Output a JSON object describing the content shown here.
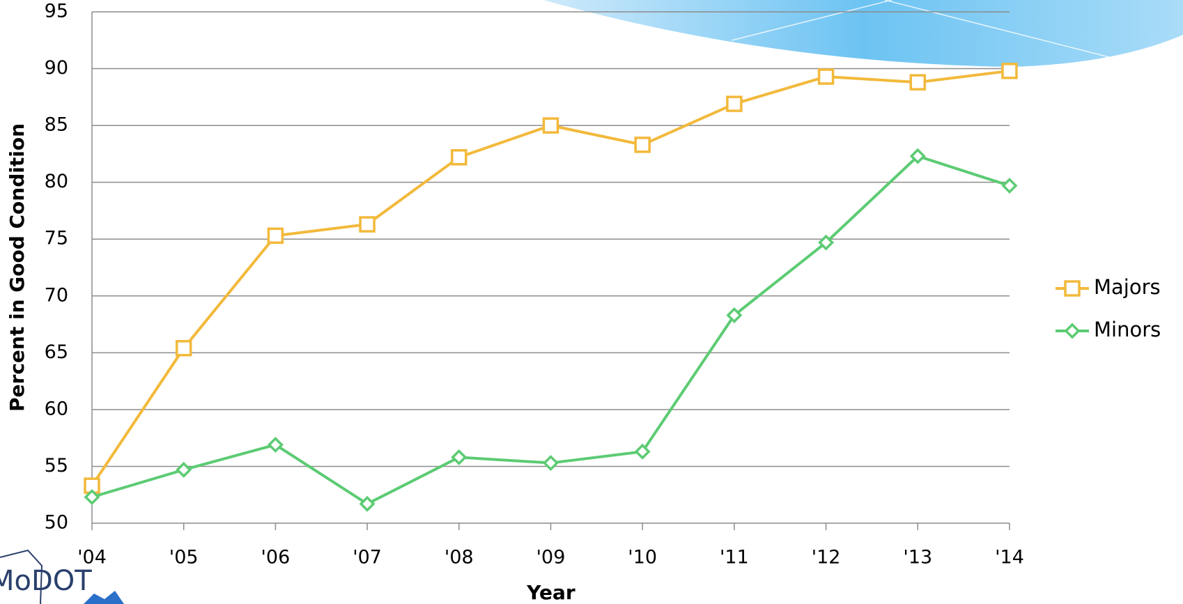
{
  "chart_data": {
    "type": "line",
    "x_label": "Year",
    "y_label": "Percent in Good Condition",
    "categories": [
      "'04",
      "'05",
      "'06",
      "'07",
      "'08",
      "'09",
      "'10",
      "'11",
      "'12",
      "'13",
      "'14"
    ],
    "series": [
      {
        "name": "Majors",
        "color": "#f2b93b",
        "marker": "square",
        "values": [
          53.3,
          65.4,
          75.3,
          76.3,
          82.2,
          85.0,
          83.3,
          86.9,
          89.3,
          88.8,
          89.8
        ]
      },
      {
        "name": "Minors",
        "color": "#5ccb73",
        "marker": "diamond",
        "values": [
          52.3,
          54.7,
          56.9,
          51.7,
          55.8,
          55.3,
          56.3,
          68.3,
          74.7,
          82.3,
          79.7
        ]
      }
    ],
    "ylim": [
      50,
      95
    ],
    "yticks": [
      50,
      55,
      60,
      65,
      70,
      75,
      80,
      85,
      90,
      95
    ],
    "grid": true,
    "legend": "right"
  },
  "logo": "MoDOT"
}
